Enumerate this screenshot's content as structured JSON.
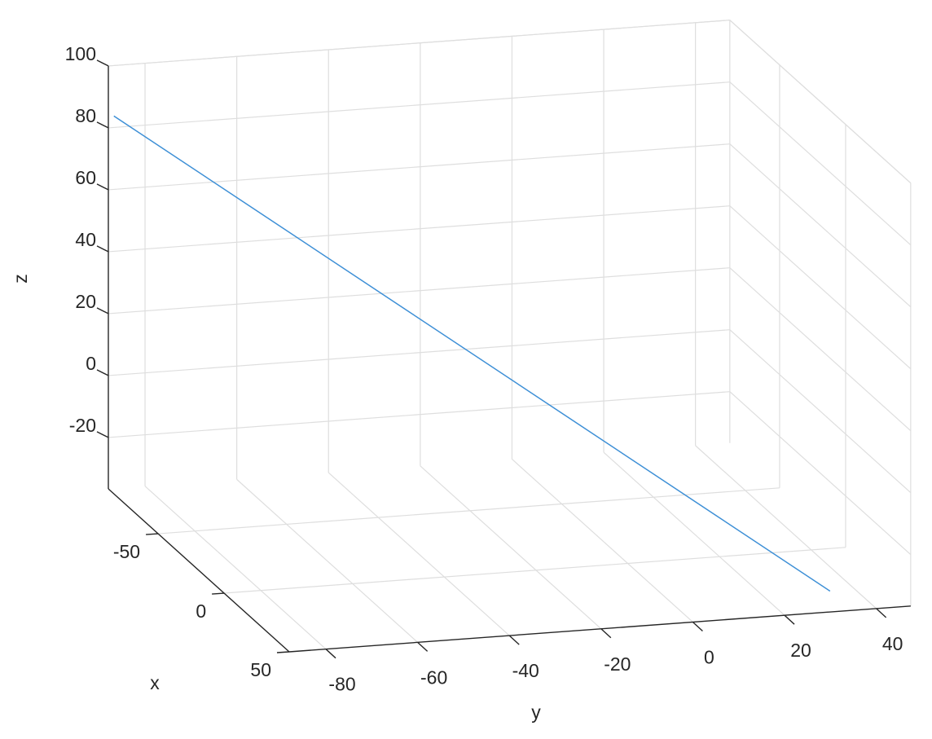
{
  "chart_data": {
    "type": "line3d",
    "title": "",
    "xlabel": "x",
    "ylabel": "y",
    "zlabel": "z",
    "xlim": [
      -87.7,
      49.3
    ],
    "ylim": [
      -88,
      47.5
    ],
    "zlim": [
      -36.6,
      100
    ],
    "xticks": [
      -50,
      0,
      50
    ],
    "yticks": [
      -80,
      -60,
      -40,
      -20,
      0,
      20,
      40
    ],
    "zticks": [
      -20,
      0,
      20,
      40,
      60,
      80,
      100
    ],
    "grid": true,
    "series": [
      {
        "x": [
          -87,
          49
        ],
        "y": [
          -87,
          30
        ],
        "z": [
          84,
          -30
        ],
        "color": "#3d8fd6"
      }
    ],
    "colors": {
      "axis": "#262626",
      "grid": "#dedede"
    }
  }
}
